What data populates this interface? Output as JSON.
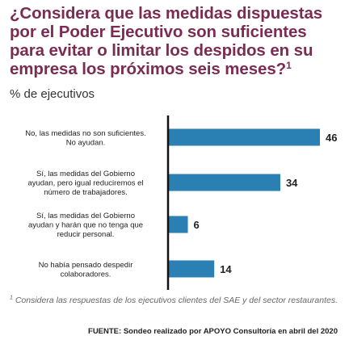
{
  "title": {
    "text": "¿Considera que las medidas dispuestas por el Poder Ejecutivo son suficientes para evitar o limitar los despidos en su empresa los próximos seis meses?",
    "footnote_mark": "1"
  },
  "subtitle": "% de ejecutivos",
  "footnote": {
    "mark": "1",
    "text": "Considera las respuestas de los ejecutivos clientes del SAE y del sector restaurantes."
  },
  "source": "FUENTE: Sondeo realizado por APOYO Consultoría en abril del 2020",
  "colors": {
    "bar": "#2a7fb3",
    "title": "#7b2c52",
    "axis": "#111111"
  },
  "chart_data": {
    "type": "bar",
    "orientation": "horizontal",
    "categories": [
      [
        "No, las medidas no son suficientes.",
        "No ayudan."
      ],
      [
        "Sí, las medidas del Gobierno",
        "ayudan, pero igual reduciremos el",
        "número de trabajadores."
      ],
      [
        "Sí, las medidas del Gobierno",
        "ayudan y harán que no tenga que",
        "reducir personal."
      ],
      [
        "No había pensado despedir",
        "colaboradores."
      ]
    ],
    "values": [
      46,
      34,
      6,
      14
    ],
    "xlim": [
      0,
      46
    ],
    "grid": false,
    "legend": "none"
  }
}
